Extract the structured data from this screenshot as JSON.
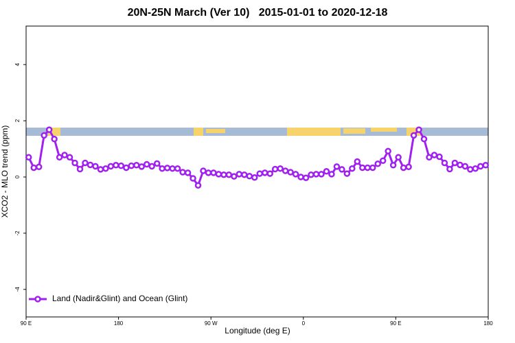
{
  "chart_data": {
    "type": "line",
    "title": "20N-25N March (Ver 10)   2015-01-01 to 2020-12-18",
    "xlabel": "Longitude (deg E)",
    "ylabel": "XCO2 - MLO trend (ppm)",
    "xlim": [
      90,
      540
    ],
    "xticks": [
      {
        "value": 90,
        "label": "90 E"
      },
      180,
      {
        "value": 270,
        "label": "90 W"
      },
      {
        "value": 360,
        "label": "0"
      },
      {
        "value": 450,
        "label": "90 E"
      },
      {
        "value": 540,
        "label": "180"
      }
    ],
    "ylim": [
      -4.98,
      5.37
    ],
    "yticks": [
      -4,
      -2,
      0,
      2,
      4
    ],
    "legend": "bottom-left",
    "x": [
      92.5,
      97.5,
      102.5,
      107.5,
      112.5,
      117.5,
      122.5,
      127.5,
      132.5,
      137.5,
      142.5,
      147.5,
      152.5,
      157.5,
      162.5,
      167.5,
      172.5,
      177.5,
      182.5,
      187.5,
      192.5,
      197.5,
      202.5,
      207.5,
      212.5,
      217.5,
      222.5,
      227.5,
      232.5,
      237.5,
      242.5,
      247.5,
      252.5,
      257.5,
      262.5,
      267.5,
      272.5,
      277.5,
      282.5,
      287.5,
      292.5,
      297.5,
      302.5,
      307.5,
      312.5,
      317.5,
      322.5,
      327.5,
      332.5,
      337.5,
      342.5,
      347.5,
      352.5,
      357.5,
      362.5,
      367.5,
      372.5,
      377.5,
      382.5,
      387.5,
      392.5,
      397.5,
      402.5,
      407.5,
      412.5,
      417.5,
      422.5,
      427.5,
      432.5,
      437.5,
      442.5,
      447.5,
      452.5,
      457.5,
      462.5,
      467.5,
      472.5,
      477.5,
      482.5,
      487.5,
      492.5,
      497.5,
      502.5,
      507.5,
      512.5,
      517.5,
      522.5,
      527.5,
      532.5,
      537.5
    ],
    "series": [
      {
        "name": "Land (Nadir&Glint) and Ocean (Glint)",
        "color": "#a020f0",
        "values": [
          0.7,
          0.33,
          0.36,
          1.48,
          1.68,
          1.35,
          0.7,
          0.78,
          0.7,
          0.5,
          0.28,
          0.5,
          0.43,
          0.38,
          0.27,
          0.3,
          0.38,
          0.42,
          0.4,
          0.33,
          0.4,
          0.42,
          0.37,
          0.45,
          0.38,
          0.48,
          0.3,
          0.32,
          0.3,
          0.3,
          0.17,
          0.15,
          -0.05,
          -0.3,
          0.22,
          0.15,
          0.15,
          0.1,
          0.08,
          0.08,
          0.02,
          0.1,
          0.08,
          0.03,
          -0.02,
          0.12,
          0.15,
          0.12,
          0.28,
          0.3,
          0.22,
          0.17,
          0.1,
          0,
          -0.03,
          0.08,
          0.1,
          0.1,
          0.2,
          0.1,
          0.37,
          0.27,
          0.12,
          0.3,
          0.55,
          0.33,
          0.33,
          0.33,
          0.47,
          0.58,
          0.92,
          0.42,
          0.7,
          0.33,
          0.36,
          1.48,
          1.68,
          1.35,
          0.7,
          0.78,
          0.72,
          0.5,
          0.28,
          0.5,
          0.43,
          0.38,
          0.27,
          0.3,
          0.38,
          0.42
        ]
      }
    ]
  }
}
